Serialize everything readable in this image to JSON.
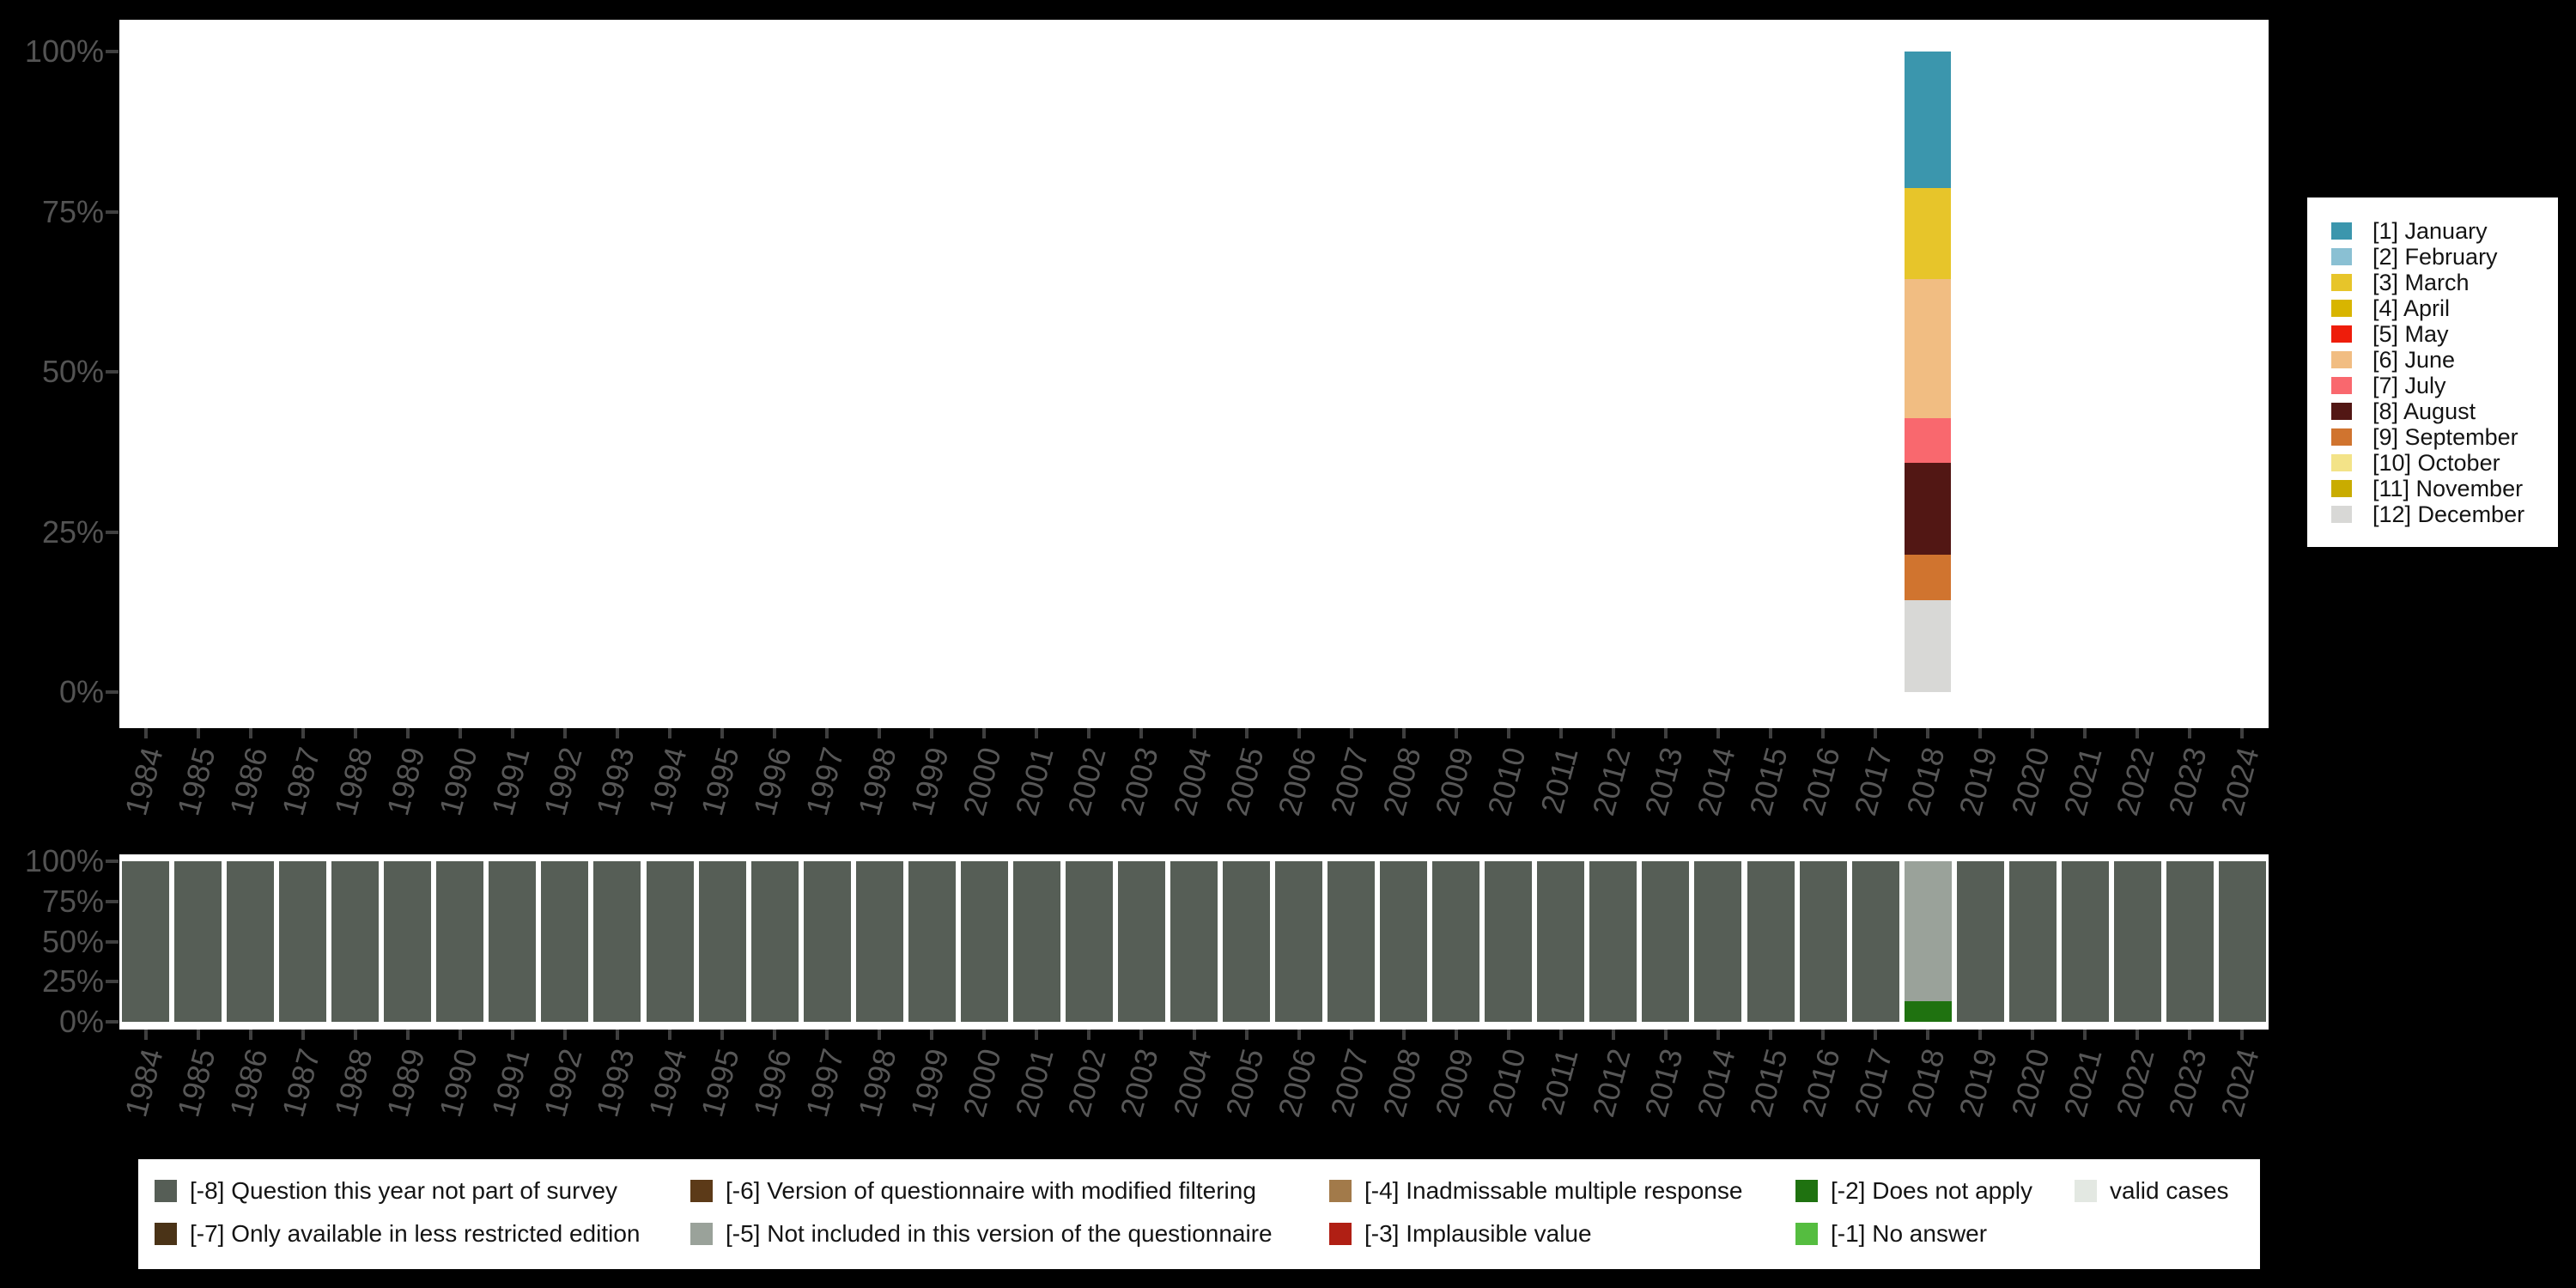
{
  "palette": {
    "[1] January": "#3b96ad",
    "[2] February": "#8ac0d3",
    "[3] March": "#e7c52a",
    "[4] April": "#d8b500",
    "[5] May": "#ee1d0b",
    "[6] June": "#f1bd82",
    "[7] July": "#f9686e",
    "[8] August": "#521714",
    "[9] September": "#d0742f",
    "[10] October": "#f3e388",
    "[11] November": "#c9ac00",
    "[12] December": "#d8d8d6",
    "[-8] Question this year not part of survey": "#565e56",
    "[-7] Only available in less restricted edition": "#4a3317",
    "[-6] Version of questionnaire with modified filtering": "#5c3a18",
    "[-5] Not included in this version of the questionnaire": "#9aa29a",
    "[-4] Inadmissable multiple response": "#a27a4a",
    "[-3] Implausible value": "#b01f14",
    "[-2] Does not apply": "#1f7210",
    "[-1] No answer": "#55bd40",
    "valid cases": "#e3e8e2"
  },
  "chart_data": [
    {
      "id": "month-distribution",
      "type": "bar",
      "stacked": true,
      "title": "",
      "xlabel": "",
      "ylabel": "",
      "ylim": [
        0,
        100
      ],
      "grid": false,
      "legend_position": "right",
      "y_ticks": [
        {
          "label": "0%",
          "pct": 0
        },
        {
          "label": "25%",
          "pct": 25
        },
        {
          "label": "50%",
          "pct": 50
        },
        {
          "label": "75%",
          "pct": 75
        },
        {
          "label": "100%",
          "pct": 100
        }
      ],
      "categories": [
        "1984",
        "1985",
        "1986",
        "1987",
        "1988",
        "1989",
        "1990",
        "1991",
        "1992",
        "1993",
        "1994",
        "1995",
        "1996",
        "1997",
        "1998",
        "1999",
        "2000",
        "2001",
        "2002",
        "2003",
        "2004",
        "2005",
        "2006",
        "2007",
        "2008",
        "2009",
        "2010",
        "2011",
        "2012",
        "2013",
        "2014",
        "2015",
        "2016",
        "2017",
        "2018",
        "2019",
        "2020",
        "2021",
        "2022",
        "2023",
        "2024"
      ],
      "bars": {
        "2018": [
          {
            "label": "[1] January",
            "pct": 21.3
          },
          {
            "label": "[3] March",
            "pct": 14.2
          },
          {
            "label": "[6] June",
            "pct": 21.8
          },
          {
            "label": "[7] July",
            "pct": 6.9
          },
          {
            "label": "[8] August",
            "pct": 14.4
          },
          {
            "label": "[9] September",
            "pct": 7.0
          },
          {
            "label": "[12] December",
            "pct": 14.4
          }
        ]
      },
      "legend_items": [
        "[1] January",
        "[2] February",
        "[3] March",
        "[4] April",
        "[5] May",
        "[6] June",
        "[7] July",
        "[8] August",
        "[9] September",
        "[10] October",
        "[11] November",
        "[12] December"
      ]
    },
    {
      "id": "missing-values",
      "type": "bar",
      "stacked": true,
      "title": "",
      "xlabel": "",
      "ylabel": "",
      "ylim": [
        0,
        100
      ],
      "grid": false,
      "legend_position": "bottom",
      "y_ticks": [
        {
          "label": "0%",
          "pct": 0
        },
        {
          "label": "25%",
          "pct": 25
        },
        {
          "label": "50%",
          "pct": 50
        },
        {
          "label": "75%",
          "pct": 75
        },
        {
          "label": "100%",
          "pct": 100
        }
      ],
      "categories": [
        "1984",
        "1985",
        "1986",
        "1987",
        "1988",
        "1989",
        "1990",
        "1991",
        "1992",
        "1993",
        "1994",
        "1995",
        "1996",
        "1997",
        "1998",
        "1999",
        "2000",
        "2001",
        "2002",
        "2003",
        "2004",
        "2005",
        "2006",
        "2007",
        "2008",
        "2009",
        "2010",
        "2011",
        "2012",
        "2013",
        "2014",
        "2015",
        "2016",
        "2017",
        "2018",
        "2019",
        "2020",
        "2021",
        "2022",
        "2023",
        "2024"
      ],
      "default_segments": [
        {
          "label": "[-8] Question this year not part of survey",
          "pct": 100
        }
      ],
      "bars": {
        "2018": [
          {
            "label": "[-5] Not included in this version of the questionnaire",
            "pct": 87
          },
          {
            "label": "[-2] Does not apply",
            "pct": 13
          }
        ]
      },
      "legend_columns": [
        [
          "[-8] Question this year not part of survey",
          "[-7] Only available in less restricted edition"
        ],
        [
          "[-6] Version of questionnaire with modified filtering",
          "[-5] Not included in this version of the questionnaire"
        ],
        [
          "[-4] Inadmissable multiple response",
          "[-3] Implausible value"
        ],
        [
          "[-2] Does not apply",
          "[-1] No answer"
        ],
        [
          "valid cases"
        ]
      ]
    }
  ]
}
